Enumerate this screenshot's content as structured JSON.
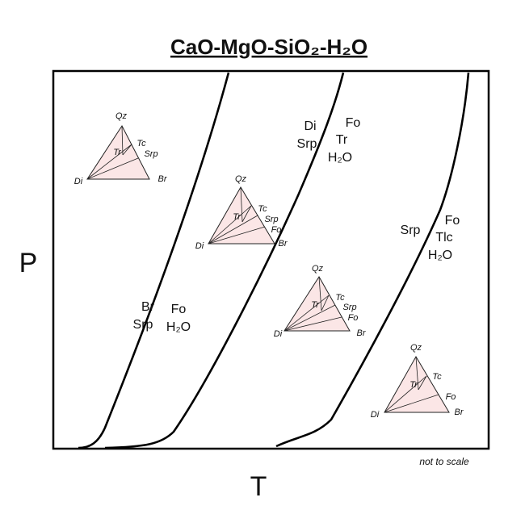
{
  "header": {
    "title": "CaO-MgO-SiO₂-H₂O"
  },
  "axes": {
    "y_label": "P",
    "x_label": "T",
    "note": "not to scale"
  },
  "reactions": [
    {
      "left": [
        "Br",
        "Srp"
      ],
      "right": [
        "Fo",
        "H₂O"
      ]
    },
    {
      "left": [
        "Di",
        "Srp"
      ],
      "right": [
        "Fo",
        "Tr",
        "H₂O"
      ]
    },
    {
      "left": [
        "Srp"
      ],
      "right": [
        "Fo",
        "Tlc",
        "H₂O"
      ]
    }
  ],
  "triangles": [
    {
      "labels": [
        "Qz",
        "Tc",
        "Tr",
        "Srp",
        "Di",
        "Br"
      ]
    },
    {
      "labels": [
        "Qz",
        "Tr",
        "Tc",
        "Srp",
        "Fo",
        "Di",
        "Br"
      ]
    },
    {
      "labels": [
        "Qz",
        "Tr",
        "Tc",
        "Srp",
        "Fo",
        "Di",
        "Br"
      ]
    },
    {
      "labels": [
        "Qz",
        "Tc",
        "Tr",
        "Fo",
        "Di",
        "Br"
      ]
    }
  ]
}
